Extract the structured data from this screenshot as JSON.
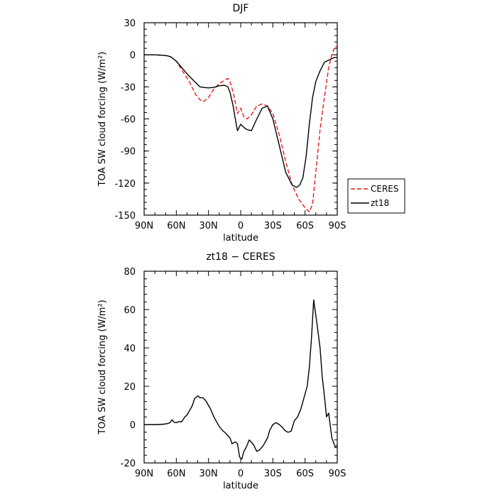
{
  "chart_data": [
    {
      "type": "line",
      "title": "DJF",
      "xlabel": "latitude",
      "ylabel": "TOA SW cloud forcing (W/m²)",
      "x_tick_values": [
        90,
        60,
        30,
        0,
        -30,
        -60,
        -90
      ],
      "x_tick_labels": [
        "90N",
        "60N",
        "30N",
        "0",
        "30S",
        "60S",
        "90S"
      ],
      "xlim": [
        90,
        -90
      ],
      "ylim": [
        -150,
        30
      ],
      "y_tick_values": [
        30,
        0,
        -30,
        -60,
        -90,
        -120,
        -150
      ],
      "y_tick_labels": [
        "30",
        "0",
        "-30",
        "-60",
        "-90",
        "-120",
        "-150"
      ],
      "legend_position": "right-bottom outside",
      "series": [
        {
          "name": "CERES",
          "color": "#e41a1c",
          "dash": "dashed",
          "x": [
            90,
            80,
            72,
            68,
            65,
            60,
            55,
            48,
            42,
            38,
            35,
            30,
            25,
            20,
            15,
            12,
            10,
            7,
            5,
            3,
            0,
            -3,
            -6,
            -10,
            -15,
            -20,
            -25,
            -30,
            -36,
            -42,
            -48,
            -54,
            -60,
            -64,
            -67,
            -70,
            -74,
            -78,
            -82,
            -85,
            -88,
            -90
          ],
          "y": [
            0,
            0,
            -0.5,
            -1,
            -2,
            -6,
            -14,
            -25,
            -37,
            -42,
            -44,
            -40,
            -32,
            -27,
            -24,
            -22,
            -25,
            -35,
            -45,
            -55,
            -50,
            -58,
            -60,
            -56,
            -48,
            -46,
            -48,
            -55,
            -75,
            -100,
            -122,
            -135,
            -143,
            -147,
            -140,
            -110,
            -70,
            -40,
            -12,
            0,
            8,
            7
          ]
        },
        {
          "name": "zt18",
          "color": "#000000",
          "dash": "solid",
          "x": [
            90,
            80,
            72,
            68,
            65,
            60,
            55,
            48,
            42,
            38,
            35,
            30,
            25,
            20,
            15,
            12,
            10,
            7,
            5,
            3,
            0,
            -3,
            -6,
            -10,
            -15,
            -20,
            -25,
            -30,
            -36,
            -42,
            -48,
            -52,
            -55,
            -58,
            -61,
            -64,
            -67,
            -70,
            -74,
            -78,
            -82,
            -86,
            -88,
            -90
          ],
          "y": [
            0,
            0,
            -0.5,
            -1,
            -2,
            -6,
            -12,
            -20,
            -26,
            -30,
            -30.5,
            -31,
            -30.5,
            -29,
            -28.5,
            -30,
            -35,
            -48,
            -60,
            -71,
            -65,
            -68,
            -70,
            -71,
            -60,
            -50,
            -48,
            -60,
            -85,
            -110,
            -122,
            -124,
            -122,
            -115,
            -95,
            -65,
            -40,
            -25,
            -15,
            -7,
            -5,
            -3,
            -2.5,
            -2.5
          ]
        }
      ]
    },
    {
      "type": "line",
      "title": "zt18 − CERES",
      "xlabel": "latitude",
      "ylabel": "TOA SW cloud forcing (W/m²)",
      "x_tick_values": [
        90,
        60,
        30,
        0,
        -30,
        -60,
        -90
      ],
      "x_tick_labels": [
        "90N",
        "60N",
        "30N",
        "0",
        "30S",
        "60S",
        "90S"
      ],
      "xlim": [
        90,
        -90
      ],
      "ylim": [
        -20,
        80
      ],
      "y_tick_values": [
        80,
        60,
        40,
        20,
        0,
        -20
      ],
      "y_tick_labels": [
        "80",
        "60",
        "40",
        "20",
        "0",
        "-20"
      ],
      "series": [
        {
          "color": "#000000",
          "dash": "solid",
          "x": [
            90,
            80,
            72,
            68,
            66,
            64,
            62,
            60,
            58,
            55,
            52,
            50,
            48,
            45,
            43,
            40,
            38,
            35,
            32,
            28,
            25,
            20,
            17,
            14,
            10,
            8,
            5,
            3,
            1,
            -1,
            -3,
            -5,
            -8,
            -12,
            -15,
            -18,
            -21,
            -25,
            -27,
            -30,
            -33,
            -36,
            -39,
            -41,
            -44,
            -47,
            -50,
            -53,
            -56,
            -59,
            -62,
            -64,
            -66,
            -68,
            -71,
            -74,
            -76,
            -78,
            -80,
            -82,
            -85,
            -88,
            -90
          ],
          "y": [
            0,
            0,
            0.2,
            0.5,
            1,
            2.5,
            1.2,
            1,
            1.5,
            1.5,
            4,
            5,
            7,
            10,
            13.5,
            15,
            14,
            14,
            12,
            8,
            4,
            -1,
            -3,
            -4.5,
            -7,
            -10,
            -9,
            -10,
            -17,
            -18,
            -14,
            -12,
            -8,
            -10.5,
            -14,
            -13,
            -11,
            -7,
            -3,
            0,
            1,
            0,
            -1.5,
            -3,
            -4,
            -3.5,
            2,
            4,
            8,
            14,
            20,
            30,
            45,
            65,
            53,
            40,
            25,
            15,
            4,
            6,
            -7,
            -11.5,
            -11
          ]
        }
      ]
    }
  ]
}
